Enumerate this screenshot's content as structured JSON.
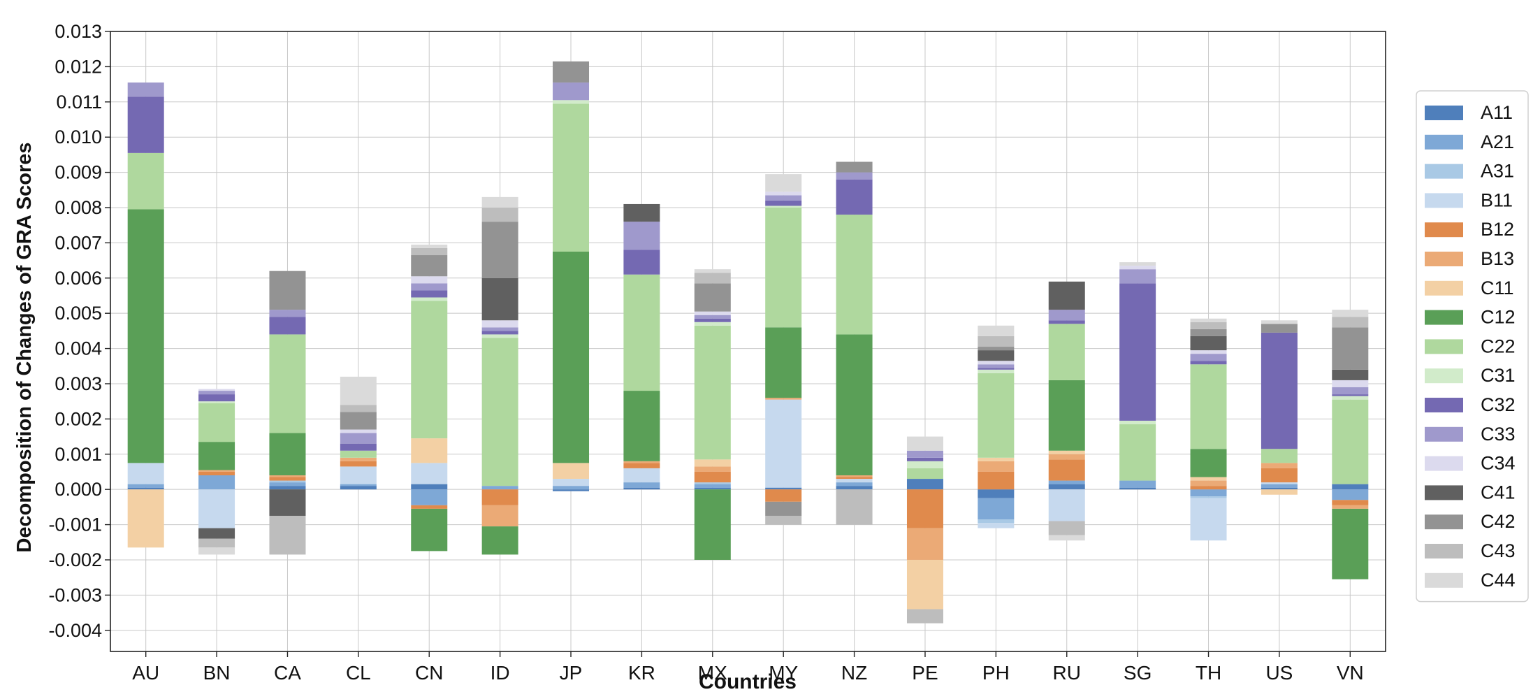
{
  "chart_data": {
    "type": "bar",
    "stacked": true,
    "xlabel": "Countries",
    "ylabel": "Decomposition of Changes of GRA Scores",
    "ylim": [
      -0.0046,
      0.013
    ],
    "yticks": [
      -0.004,
      -0.003,
      -0.002,
      -0.001,
      0.0,
      0.001,
      0.002,
      0.003,
      0.004,
      0.005,
      0.006,
      0.007,
      0.008,
      0.009,
      0.01,
      0.011,
      0.012,
      0.013
    ],
    "ytick_labels": [
      "-0.004",
      "-0.003",
      "-0.002",
      "-0.001",
      "0.000",
      "0.001",
      "0.002",
      "0.003",
      "0.004",
      "0.005",
      "0.006",
      "0.007",
      "0.008",
      "0.009",
      "0.010",
      "0.011",
      "0.012",
      "0.013"
    ],
    "grid": true,
    "legend_position": "right",
    "categories": [
      "AU",
      "BN",
      "CA",
      "CL",
      "CN",
      "ID",
      "JP",
      "KR",
      "MX",
      "MY",
      "NZ",
      "PE",
      "PH",
      "RU",
      "SG",
      "TH",
      "US",
      "VN"
    ],
    "series": [
      {
        "name": "A11",
        "color": "#4f7fbb",
        "values": [
          5e-05,
          0,
          0.0001,
          0.0001,
          0.00015,
          0,
          -5e-05,
          5e-05,
          5e-05,
          5e-05,
          0.0001,
          0.0003,
          -0.00025,
          0.00015,
          5e-05,
          0,
          5e-05,
          0.00015
        ]
      },
      {
        "name": "A21",
        "color": "#7ea8d6",
        "values": [
          0.0001,
          0.0004,
          0.0001,
          5e-05,
          -0.00045,
          0.0001,
          0.0001,
          0.00015,
          0.0001,
          0,
          0.0001,
          0,
          -0.0006,
          0.0001,
          0.0002,
          -0.0002,
          0.0001,
          -0.0003
        ]
      },
      {
        "name": "A31",
        "color": "#a9c9e5",
        "values": [
          0,
          0,
          5e-05,
          0,
          0,
          0,
          0,
          0,
          5e-05,
          0,
          0,
          0,
          -0.0001,
          0,
          0,
          -5e-05,
          0,
          0
        ]
      },
      {
        "name": "B11",
        "color": "#c6d9ee",
        "values": [
          0.0006,
          -0.0011,
          0,
          0.0005,
          0.0006,
          0,
          0.0002,
          0.0004,
          0,
          0.0025,
          0.0001,
          0,
          -0.00015,
          -0.0009,
          0,
          -0.0012,
          5e-05,
          0
        ]
      },
      {
        "name": "B12",
        "color": "#e08a4c",
        "values": [
          0,
          0.0001,
          0.0001,
          0.00015,
          -0.0001,
          -0.00045,
          0,
          0.00015,
          0.0003,
          -0.00035,
          5e-05,
          -0.0011,
          0.0005,
          0.0006,
          0,
          0.0001,
          0.0004,
          -0.00015
        ]
      },
      {
        "name": "B13",
        "color": "#ebaa76",
        "values": [
          0,
          5e-05,
          5e-05,
          0.0001,
          0,
          -0.0006,
          0,
          5e-05,
          0.00015,
          5e-05,
          5e-05,
          -0.0009,
          0.0003,
          0.00015,
          0,
          0.00015,
          0.00015,
          -0.0001
        ]
      },
      {
        "name": "C11",
        "color": "#f3d0a4",
        "values": [
          -0.00165,
          0,
          0,
          0,
          0.0007,
          0,
          0.00045,
          0,
          0.0002,
          0,
          0,
          -0.0014,
          0.0001,
          0.0001,
          0,
          0.0001,
          -0.00015,
          0
        ]
      },
      {
        "name": "C12",
        "color": "#5a9f57",
        "values": [
          0.0072,
          0.0008,
          0.0012,
          0,
          -0.0012,
          -0.0008,
          0.006,
          0.002,
          -0.002,
          0.002,
          0.004,
          0,
          0,
          0.002,
          0,
          0.0008,
          0,
          -0.002
        ]
      },
      {
        "name": "C22",
        "color": "#afd89e",
        "values": [
          0.0016,
          0.0011,
          0.0028,
          0.0002,
          0.0039,
          0.0042,
          0.0042,
          0.0033,
          0.0038,
          0.0034,
          0.0034,
          0.0003,
          0.0024,
          0.0016,
          0.0016,
          0.0024,
          0.0004,
          0.0024
        ]
      },
      {
        "name": "C31",
        "color": "#d1ebca",
        "values": [
          0,
          5e-05,
          0,
          0,
          0.0001,
          0.0001,
          0.0001,
          0,
          0.0001,
          5e-05,
          0,
          0.0002,
          0.0001,
          0,
          0.0001,
          0,
          0,
          0.0001
        ]
      },
      {
        "name": "C32",
        "color": "#7469b2",
        "values": [
          0.0016,
          0.0002,
          0.0005,
          0.0002,
          0.0002,
          0.0001,
          0,
          0.0007,
          0.0001,
          0.00015,
          0.001,
          0.0001,
          5e-05,
          0.0001,
          0.0039,
          0.0001,
          0.0033,
          5e-05
        ]
      },
      {
        "name": "C33",
        "color": "#9f99cc",
        "values": [
          0.0004,
          0.0001,
          0.0002,
          0.0003,
          0.0002,
          0.0001,
          0.0005,
          0.0008,
          0.0001,
          0.00015,
          0.0002,
          0.0002,
          0.0001,
          0.0003,
          0.0004,
          0.0002,
          0,
          0.0002
        ]
      },
      {
        "name": "C34",
        "color": "#dcdaee",
        "values": [
          0,
          5e-05,
          0,
          0.0001,
          0.0002,
          0.0002,
          0,
          0,
          0.0001,
          0.0001,
          0,
          0,
          0.0001,
          0,
          0.0001,
          0.0001,
          0,
          0.0002
        ]
      },
      {
        "name": "C41",
        "color": "#606060",
        "values": [
          0,
          -0.0003,
          -0.00075,
          0,
          0,
          0.0012,
          0,
          0.0005,
          0,
          0,
          0,
          0,
          0.0003,
          0.0008,
          0,
          0.0004,
          0,
          0.0003
        ]
      },
      {
        "name": "C42",
        "color": "#939393",
        "values": [
          0,
          0,
          0.0011,
          0.0005,
          0.0006,
          0.0016,
          0.0006,
          0,
          0.0008,
          -0.0004,
          0.0003,
          0,
          0.0001,
          0,
          0,
          0.0002,
          0.00025,
          0.0012
        ]
      },
      {
        "name": "C43",
        "color": "#bdbdbd",
        "values": [
          0,
          -0.00025,
          -0.0011,
          0.0002,
          0.0002,
          0.0004,
          0,
          0,
          0.0003,
          -0.00025,
          -0.001,
          -0.0004,
          0.0003,
          -0.0004,
          0,
          0.0002,
          0,
          0.0003
        ]
      },
      {
        "name": "C44",
        "color": "#dadada",
        "values": [
          0,
          -0.0002,
          0,
          0.0008,
          0.0001,
          0.0003,
          0,
          0,
          0.0001,
          0.0005,
          0,
          0.0004,
          0.0003,
          -0.00015,
          0.0001,
          0.0001,
          0.0001,
          0.0002
        ]
      }
    ]
  }
}
